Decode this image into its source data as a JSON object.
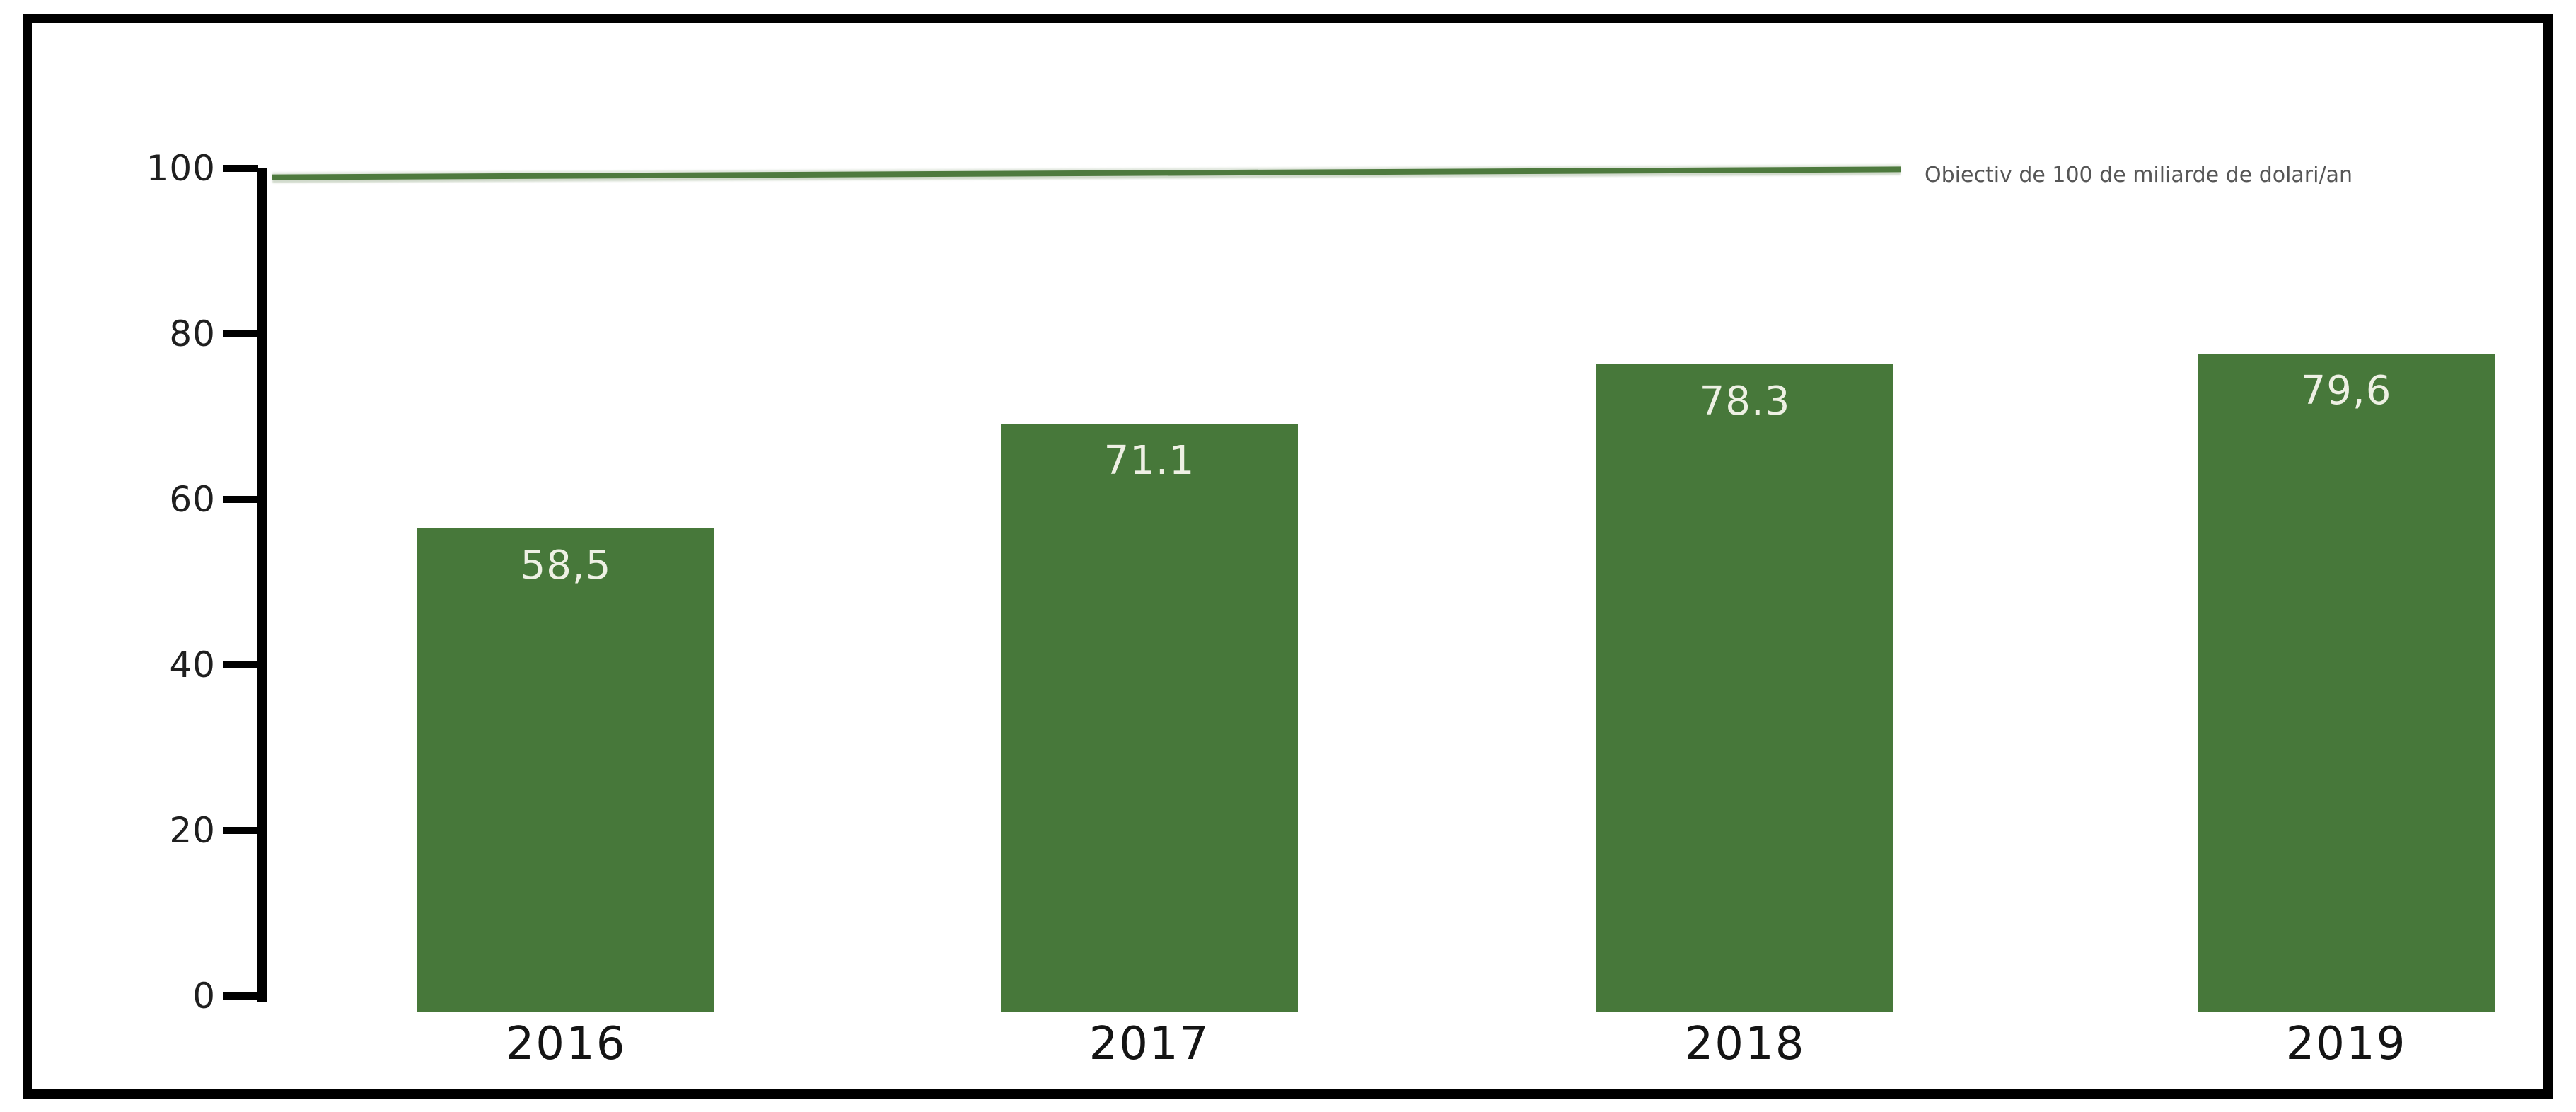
{
  "chart_data": {
    "type": "bar",
    "title": "",
    "xlabel": "",
    "ylabel": "",
    "categories": [
      "2016",
      "2017",
      "2018",
      "2019"
    ],
    "values": [
      58.5,
      71.1,
      78.3,
      79.6
    ],
    "bar_value_labels": [
      "58,5",
      "71.1",
      "78.3",
      "79,6"
    ],
    "y_ticks": [
      0,
      20,
      40,
      60,
      80,
      100
    ],
    "y_tick_labels": [
      "0",
      "20",
      "40",
      "60",
      "80",
      "100"
    ],
    "ylim": [
      0,
      100
    ],
    "grid": false,
    "bar_color": "#47783a",
    "bar_label_color": "#eef0e4",
    "target_line": {
      "value": 100,
      "label": "Obiectiv de 100 de miliarde de dolari/an",
      "color": "#4e7a3e"
    },
    "legend_position": "right-of-target-line",
    "frame_color": "#000000"
  }
}
